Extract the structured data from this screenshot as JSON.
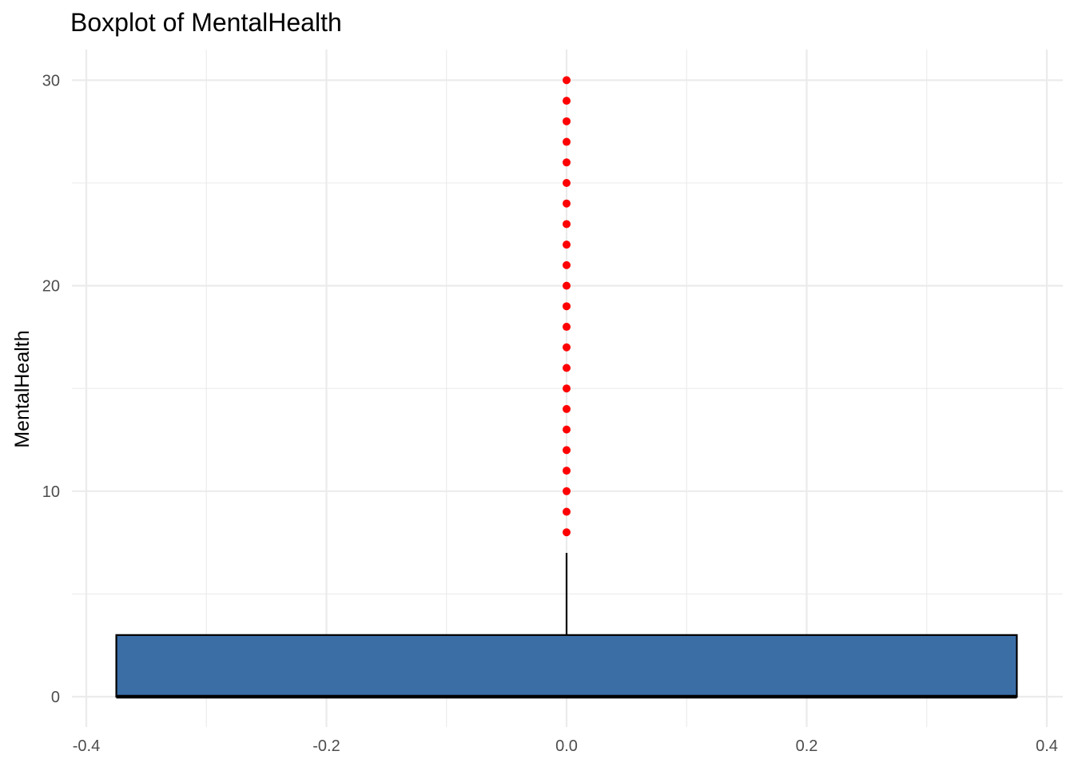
{
  "chart_data": {
    "type": "boxplot",
    "title": "Boxplot of MentalHealth",
    "xlabel": "",
    "ylabel": "MentalHealth",
    "xlim": [
      -0.4,
      0.4
    ],
    "ylim": [
      0,
      30
    ],
    "x_ticks": [
      -0.4,
      -0.2,
      0.0,
      0.2,
      0.4
    ],
    "x_tick_labels": [
      "-0.4",
      "-0.2",
      "0.0",
      "0.2",
      "0.4"
    ],
    "y_ticks": [
      0,
      10,
      20,
      30
    ],
    "y_tick_labels": [
      "0",
      "10",
      "20",
      "30"
    ],
    "grid": true,
    "box": {
      "x_center": 0.0,
      "width": 0.75,
      "min": 0,
      "q1": 0,
      "median": 0,
      "q3": 3,
      "whisker_high": 7,
      "fill": "#3a6ea5",
      "outline": "#000000"
    },
    "outliers": {
      "color": "#ff0000",
      "values": [
        8,
        9,
        10,
        11,
        12,
        13,
        14,
        15,
        16,
        17,
        18,
        19,
        20,
        21,
        22,
        23,
        24,
        25,
        26,
        27,
        28,
        29,
        30
      ]
    }
  }
}
